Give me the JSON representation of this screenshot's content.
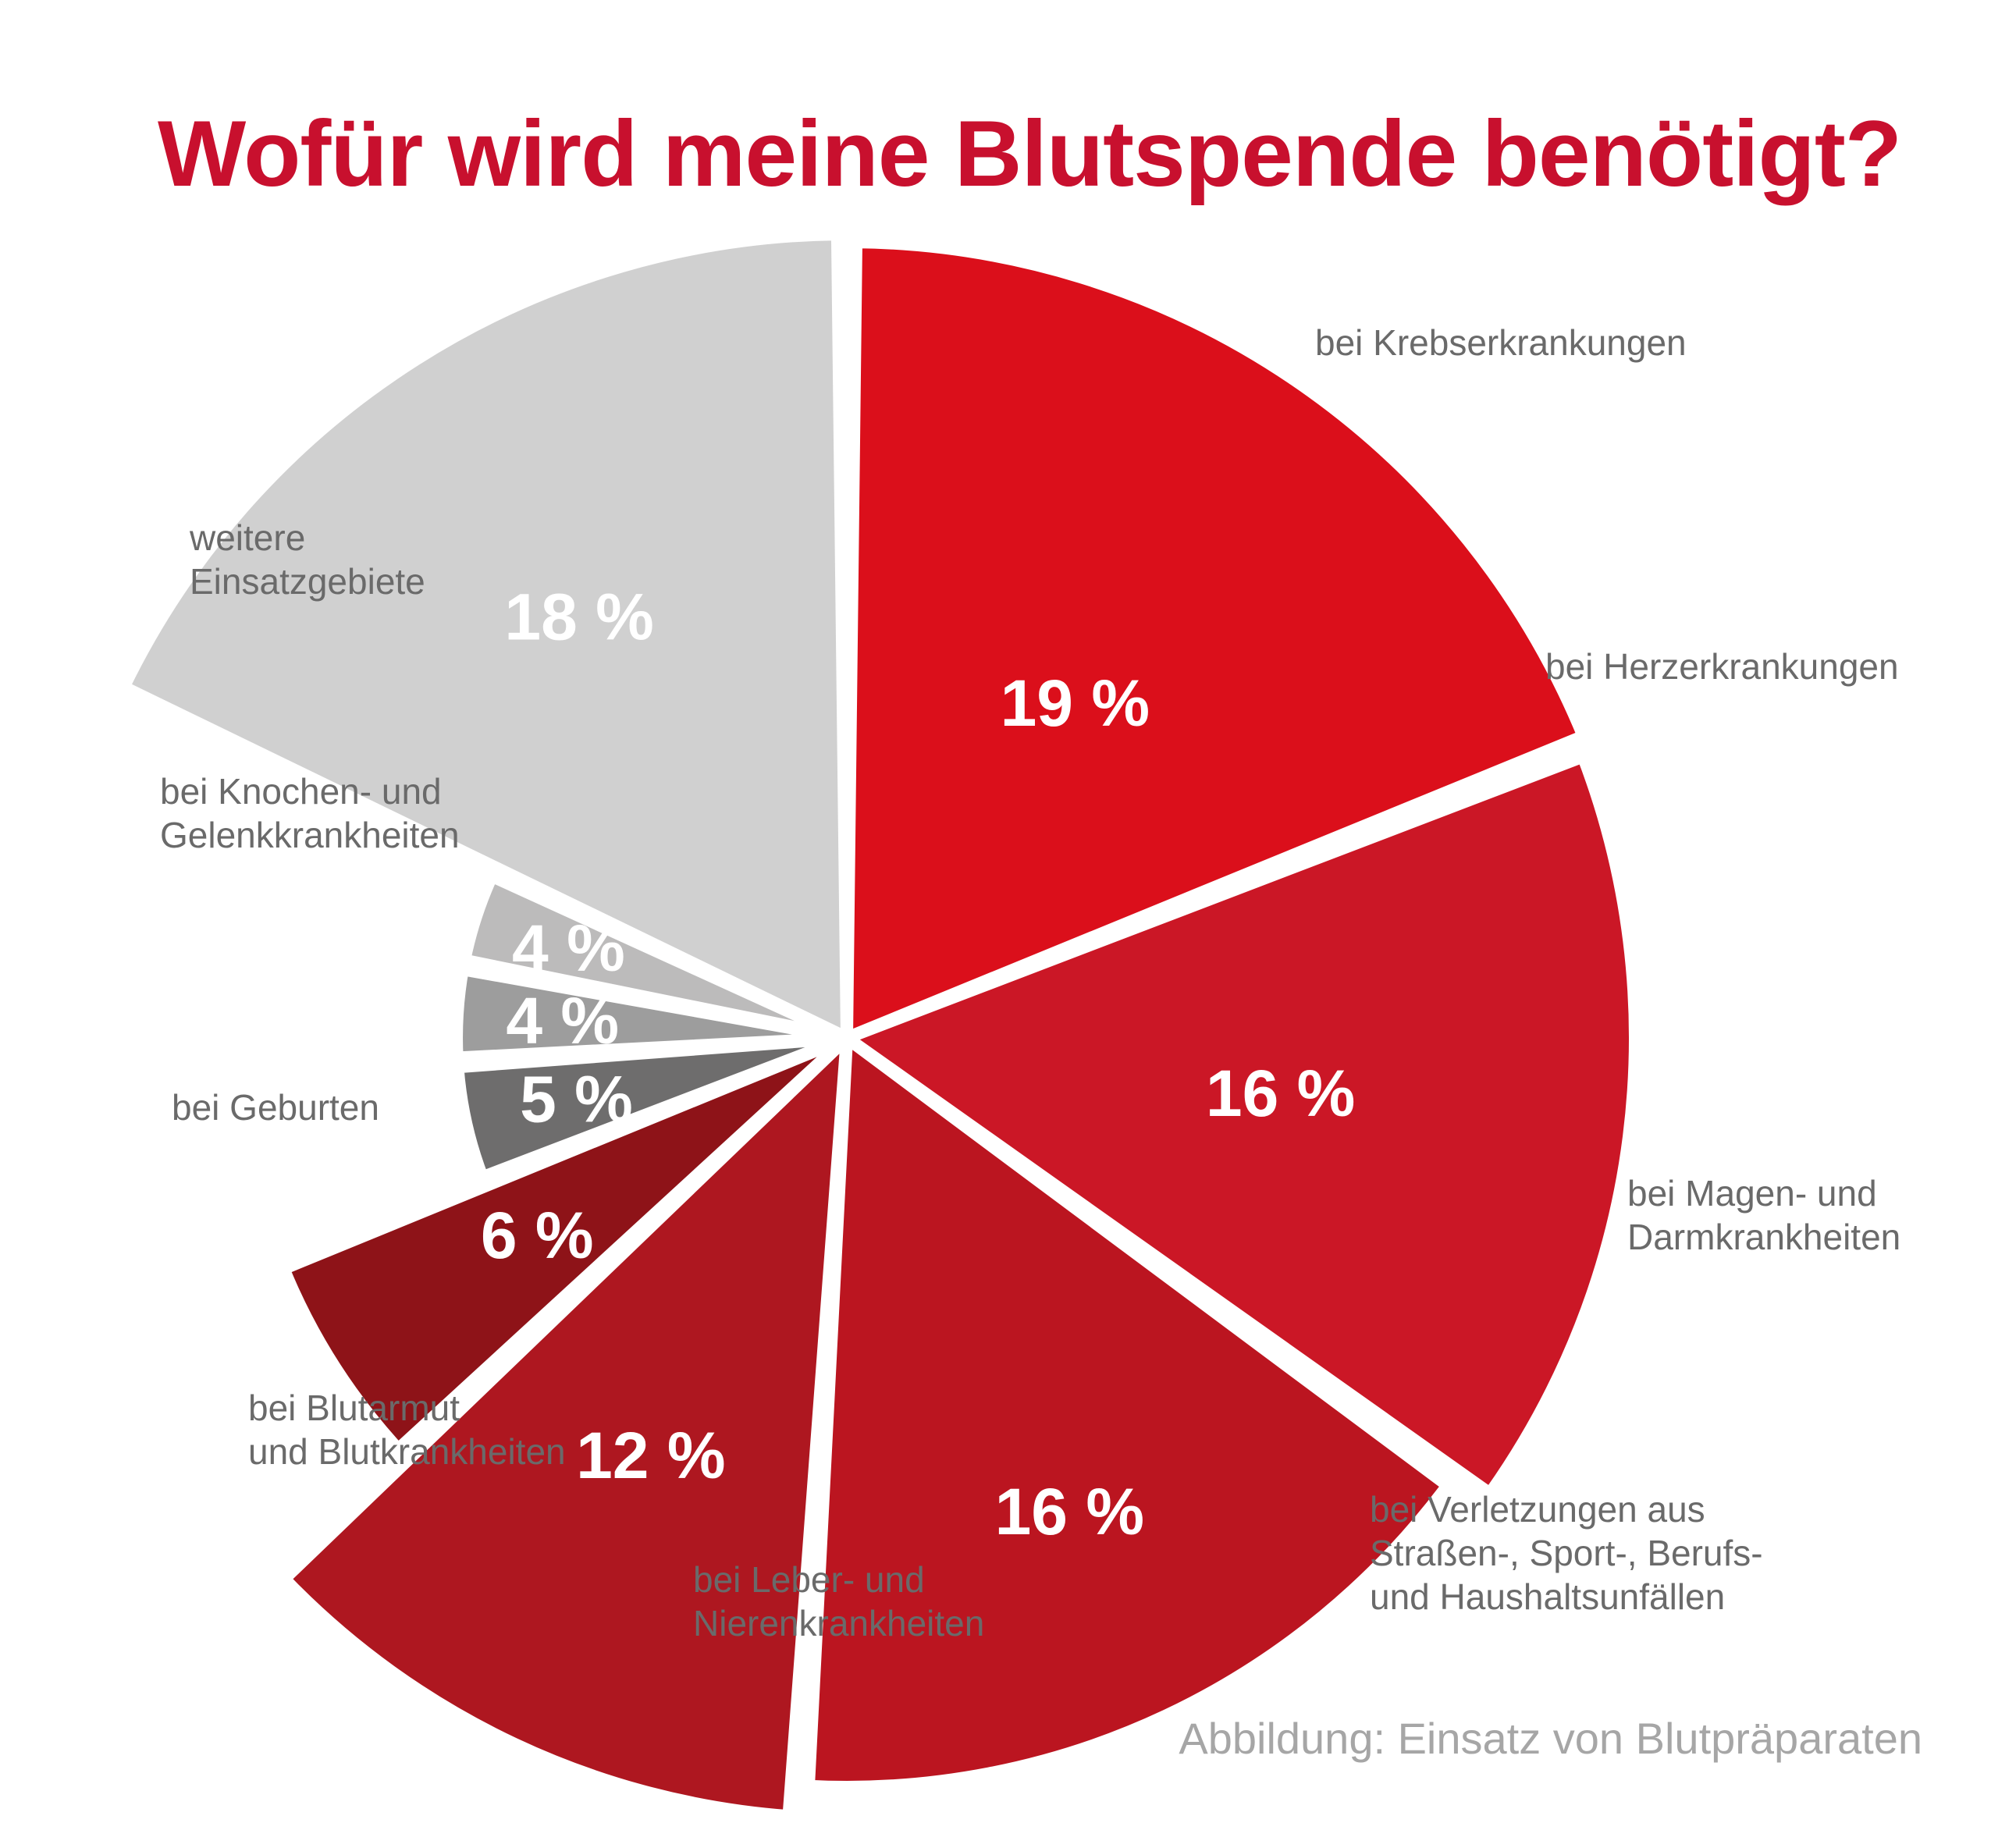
{
  "title": "Wofür wird meine Blutspende benötigt?",
  "caption": "Abbildung: Einsatz von Blutpräparaten",
  "chart_data": {
    "type": "pie",
    "title": "Wofür wird meine Blutspende benötigt?",
    "unit": "%",
    "slices": [
      {
        "label": "bei Krebserkrankungen",
        "value": 19,
        "value_label": "19 %",
        "color": "#db0f1b"
      },
      {
        "label": "bei Herzerkrankungen",
        "value": 16,
        "value_label": "16 %",
        "color": "#cb1726"
      },
      {
        "label": "bei Magen- und Darmkrankheiten",
        "value": 16,
        "value_label": "16 %",
        "color": "#bb1520"
      },
      {
        "label": "bei Verletzungen aus Straßen-, Sport-, Berufs- und Haushaltsunfällen",
        "value": 12,
        "value_label": "12 %",
        "color": "#ae1720"
      },
      {
        "label": "bei Leber- und Nierenkrankheiten",
        "value": 6,
        "value_label": "6 %",
        "color": "#8e1318"
      },
      {
        "label": "bei Blutarmut und Blutkrankheiten",
        "value": 5,
        "value_label": "5 %",
        "color": "#6e6d6d"
      },
      {
        "label": "bei Geburten",
        "value": 4,
        "value_label": "4 %",
        "color": "#9d9d9d"
      },
      {
        "label": "bei Knochen- und Gelenkkrankheiten",
        "value": 4,
        "value_label": "4 %",
        "color": "#bcbbbb"
      },
      {
        "label": "weitere Einsatzgebiete",
        "value": 18,
        "value_label": "18 %",
        "color": "#d0d0d0"
      }
    ]
  }
}
